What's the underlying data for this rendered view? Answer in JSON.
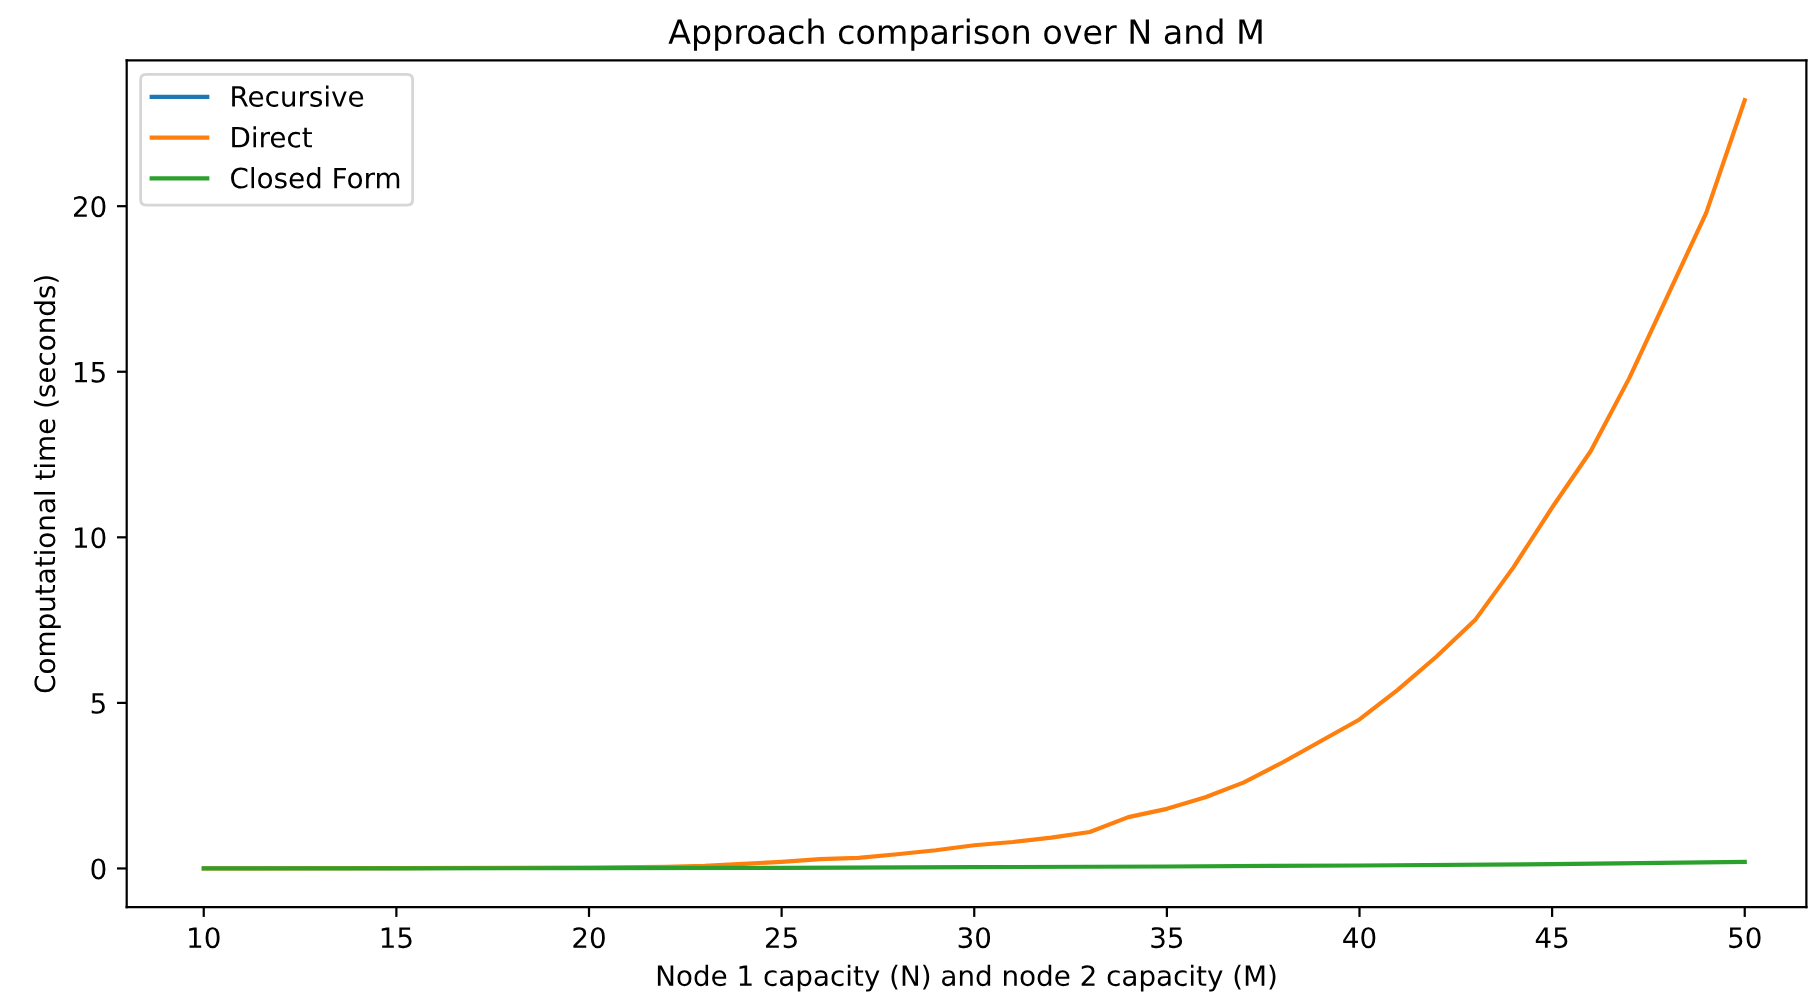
{
  "chart_data": {
    "type": "line",
    "title": "Approach comparison over N and M",
    "xlabel": "Node 1 capacity (N) and node 2 capacity (M)",
    "ylabel": "Computational time (seconds)",
    "xlim": [
      8,
      51.6
    ],
    "ylim": [
      -1.17,
      24.4
    ],
    "xticks": [
      10,
      15,
      20,
      25,
      30,
      35,
      40,
      45,
      50
    ],
    "yticks": [
      0,
      5,
      10,
      15,
      20
    ],
    "grid": false,
    "legend": "top left",
    "series": [
      {
        "name": "Recursive",
        "color": "#1f77b4"
      },
      {
        "name": "Direct",
        "color": "#ff7f0e",
        "x": [
          10,
          15,
          20,
          22,
          23,
          24,
          25,
          26,
          27,
          28,
          29,
          30,
          31,
          32,
          33,
          34,
          35,
          36,
          37,
          38,
          39,
          40,
          41,
          42,
          43,
          44,
          45,
          46,
          47,
          48,
          49,
          50
        ],
        "values": [
          0.0,
          0.01,
          0.03,
          0.05,
          0.08,
          0.14,
          0.2,
          0.28,
          0.32,
          0.43,
          0.55,
          0.7,
          0.8,
          0.93,
          1.1,
          1.55,
          1.8,
          2.15,
          2.6,
          3.2,
          3.85,
          4.5,
          5.4,
          6.4,
          7.5,
          9.1,
          10.9,
          12.6,
          14.8,
          17.3,
          19.8,
          23.2
        ]
      },
      {
        "name": "Closed Form",
        "color": "#2ca02c",
        "x": [
          10,
          15,
          20,
          25,
          30,
          35,
          40,
          45,
          50
        ],
        "values": [
          0.0,
          0.0,
          0.01,
          0.02,
          0.04,
          0.06,
          0.09,
          0.13,
          0.2
        ]
      }
    ]
  }
}
